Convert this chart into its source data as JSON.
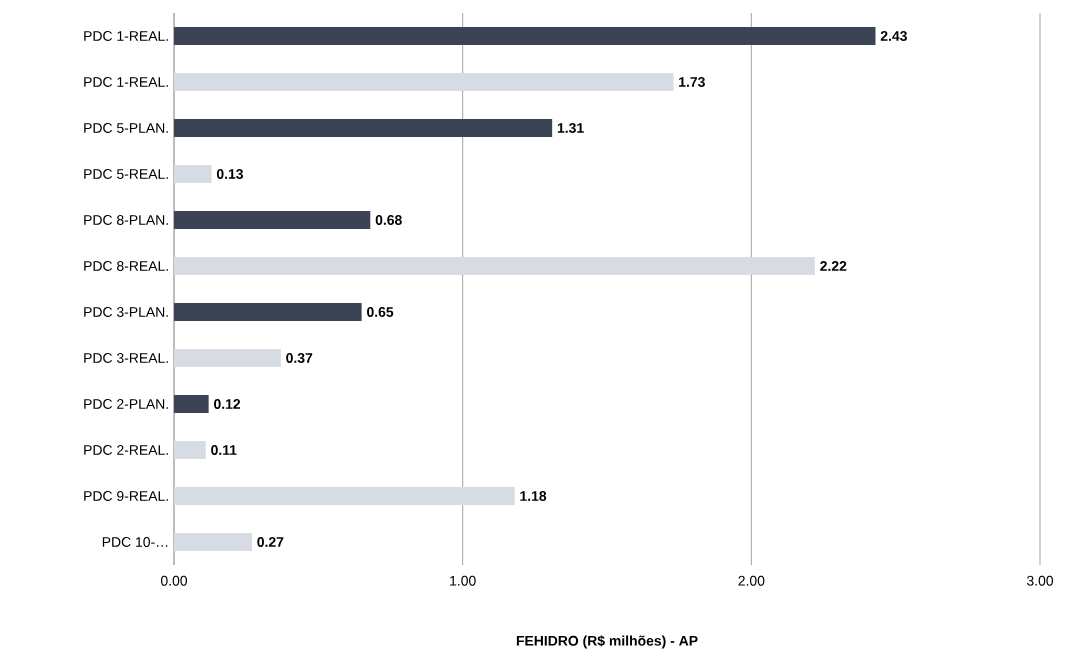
{
  "chart_data": {
    "type": "bar",
    "orientation": "horizontal",
    "xlabel": "FEHIDRO (R$ milhões) - AP",
    "categories": [
      "PDC 1-REAL.",
      "PDC 1-REAL.",
      "PDC 5-PLAN.",
      "PDC 5-REAL.",
      "PDC 8-PLAN.",
      "PDC 8-REAL.",
      "PDC 3-PLAN.",
      "PDC 3-REAL.",
      "PDC 2-PLAN.",
      "PDC 2-REAL.",
      "PDC 9-REAL.",
      "PDC 10-…"
    ],
    "values": [
      2.43,
      1.73,
      1.31,
      0.13,
      0.68,
      2.22,
      0.65,
      0.37,
      0.12,
      0.11,
      1.18,
      0.27
    ],
    "colors": [
      "#3b4455",
      "#d6dbe4",
      "#3b4455",
      "#d6dbe4",
      "#3b4455",
      "#d6dbe4",
      "#3b4455",
      "#d6dbe4",
      "#3b4455",
      "#d6dbe4",
      "#d6dbe4",
      "#d6dbe4"
    ],
    "xlim": [
      0,
      3
    ],
    "xticks": [
      {
        "value": 0,
        "label": "0.00"
      },
      {
        "value": 1,
        "label": "1.00"
      },
      {
        "value": 2,
        "label": "2.00"
      },
      {
        "value": 3,
        "label": "3.00"
      }
    ],
    "grid": "x",
    "data_labels": true
  }
}
